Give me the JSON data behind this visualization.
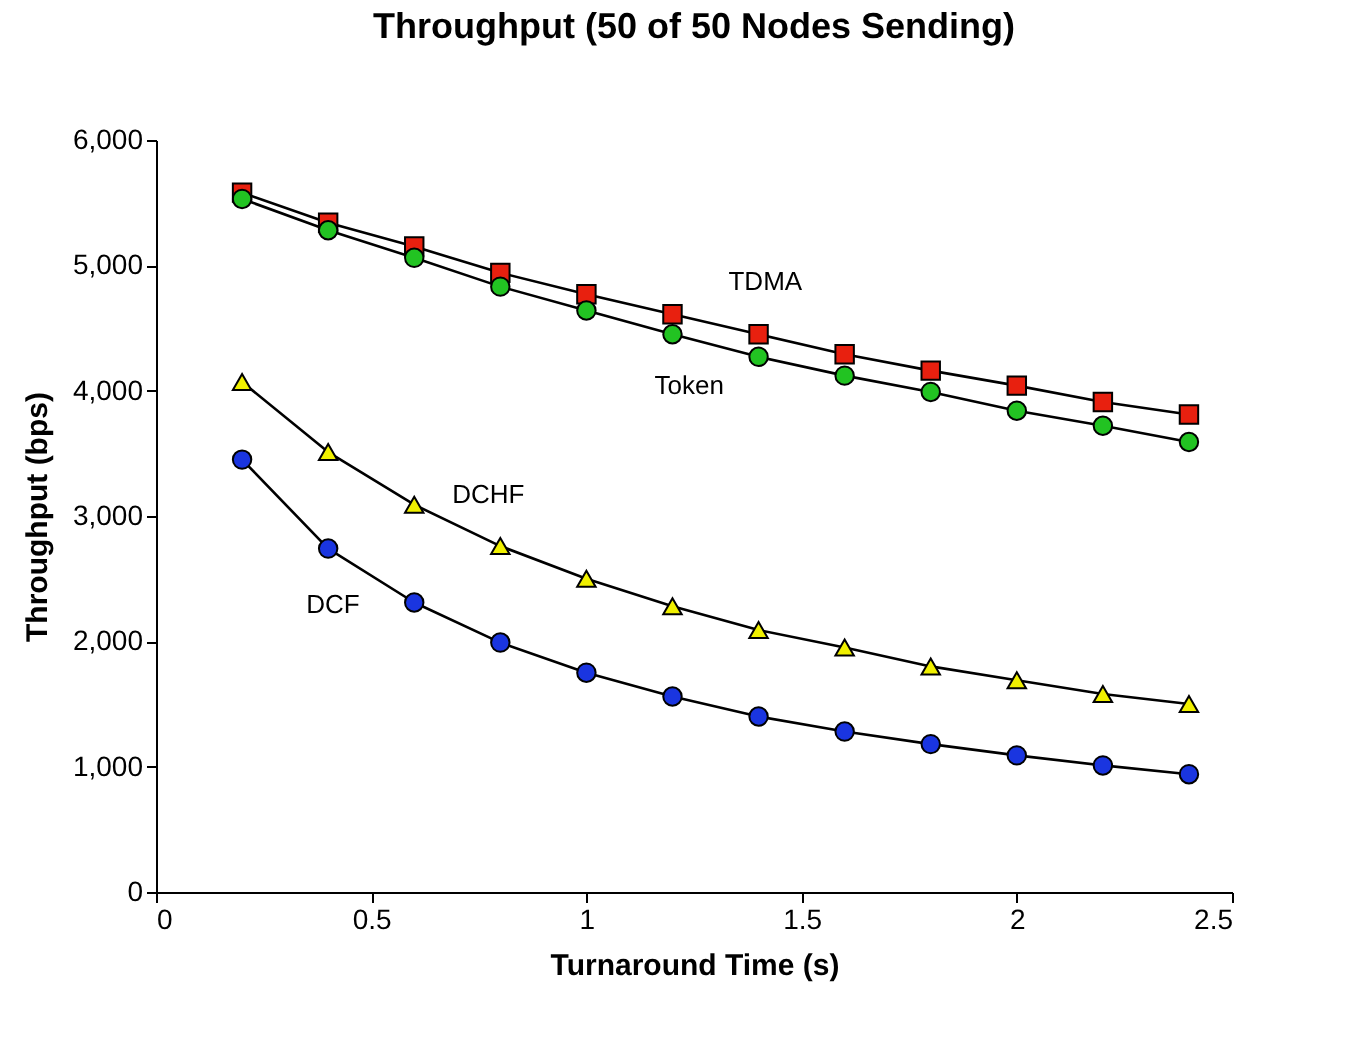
{
  "chart_data": {
    "type": "line",
    "title": "Throughput (50 of 50 Nodes Sending)",
    "xlabel": "Turnaround Time (s)",
    "ylabel": "Throughput (bps)",
    "x": [
      0.2,
      0.4,
      0.6,
      0.8,
      1.0,
      1.2,
      1.4,
      1.6,
      1.8,
      2.0,
      2.2,
      2.4
    ],
    "series": [
      {
        "name": "TDMA",
        "color": "#e8200f",
        "marker": "square",
        "values": [
          5580,
          5340,
          5150,
          4940,
          4770,
          4610,
          4450,
          4290,
          4160,
          4040,
          3910,
          3810
        ]
      },
      {
        "name": "Token",
        "color": "#22c322",
        "marker": "circle",
        "values": [
          5530,
          5280,
          5060,
          4830,
          4640,
          4450,
          4270,
          4120,
          3990,
          3840,
          3720,
          3590
        ]
      },
      {
        "name": "DCHF",
        "color": "#f0f000",
        "marker": "triangle",
        "values": [
          4070,
          3510,
          3090,
          2760,
          2500,
          2280,
          2090,
          1950,
          1800,
          1690,
          1580,
          1500
        ]
      },
      {
        "name": "DCF",
        "color": "#1a35e0",
        "marker": "circle",
        "values": [
          3450,
          2740,
          2310,
          1990,
          1750,
          1560,
          1400,
          1280,
          1180,
          1090,
          1010,
          940
        ]
      }
    ],
    "xlim": [
      0,
      2.5
    ],
    "xticks": [
      0,
      0.5,
      1,
      1.5,
      2,
      2.5
    ],
    "ylim": [
      0,
      6000
    ],
    "yticks": [
      0,
      {
        "value": 1000,
        "label": "1,000"
      },
      {
        "value": 2000,
        "label": "2,000"
      },
      {
        "value": 3000,
        "label": "3,000"
      },
      {
        "value": 4000,
        "label": "4,000"
      },
      {
        "value": 5000,
        "label": "5,000"
      },
      {
        "value": 6000,
        "label": "6,000"
      }
    ],
    "grid": false,
    "line_style": "solid"
  }
}
